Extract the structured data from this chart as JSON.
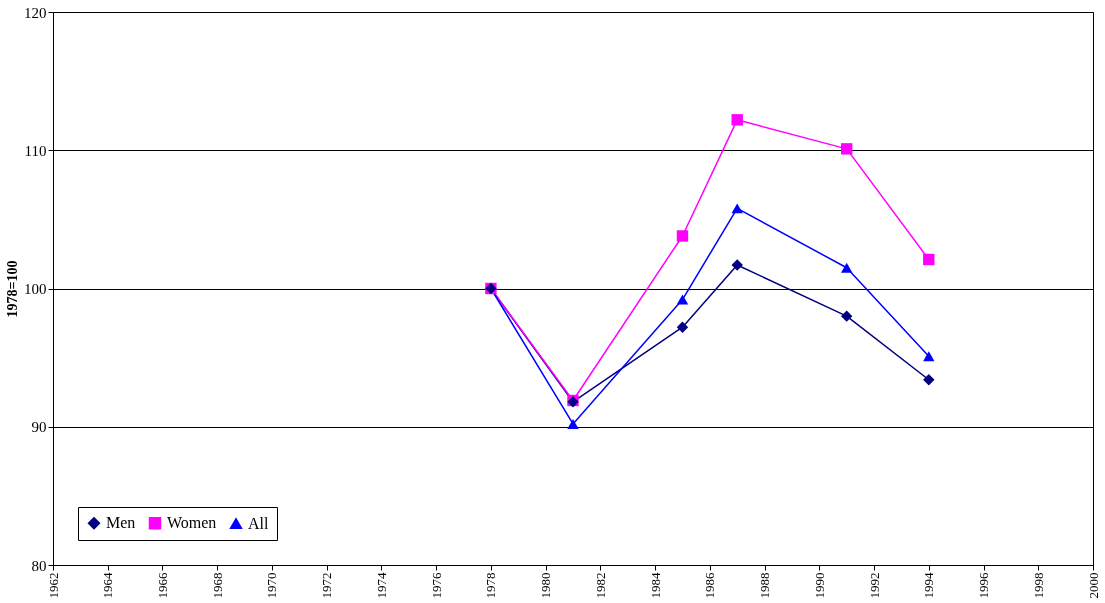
{
  "chart_data": {
    "type": "line",
    "ylabel": "1978=100",
    "x": [
      1978,
      1981,
      1985,
      1987,
      1991,
      1994
    ],
    "series": [
      {
        "name": "Men",
        "color": "#000080",
        "marker": "diamond",
        "values": [
          100,
          91.8,
          97.2,
          101.7,
          98.0,
          93.4
        ]
      },
      {
        "name": "Women",
        "color": "#ff00ff",
        "marker": "square",
        "values": [
          100,
          91.9,
          103.8,
          112.2,
          110.1,
          102.1
        ]
      },
      {
        "name": "All",
        "color": "#0000ff",
        "marker": "triangle",
        "values": [
          100,
          90.2,
          99.2,
          105.8,
          101.5,
          95.1
        ]
      }
    ],
    "xlim": [
      1962,
      2000
    ],
    "xticks": [
      1962,
      1964,
      1966,
      1968,
      1970,
      1972,
      1974,
      1976,
      1978,
      1980,
      1982,
      1984,
      1986,
      1988,
      1990,
      1992,
      1994,
      1996,
      1998,
      2000
    ],
    "ylim": [
      80,
      120
    ],
    "yticks": [
      80,
      90,
      100,
      110,
      120
    ],
    "grid": "y",
    "legend": "bottom left"
  }
}
